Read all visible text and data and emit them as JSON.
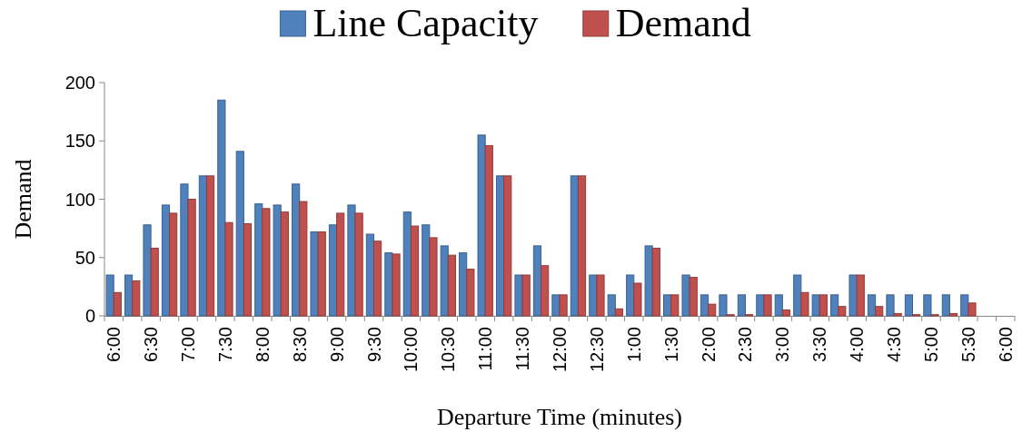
{
  "chart_data": {
    "type": "bar",
    "xlabel": "Departure Time (minutes)",
    "ylabel": "Demand",
    "categories": [
      "6:00",
      null,
      "6:30",
      null,
      "7:00",
      null,
      "7:30",
      null,
      "8:00",
      null,
      "8:30",
      null,
      "9:00",
      null,
      "9:30",
      null,
      "10:00",
      null,
      "10:30",
      null,
      "11:00",
      null,
      "11:30",
      null,
      "12:00",
      null,
      "12:30",
      null,
      "1:00",
      null,
      "1:30",
      null,
      "2:00",
      null,
      "2:30",
      null,
      "3:00",
      null,
      "3:30",
      null,
      "4:00",
      null,
      "4:30",
      null,
      "5:00",
      null,
      "5:30",
      null,
      "6:00"
    ],
    "series": [
      {
        "name": "Line Capacity",
        "color": "#4f81bd",
        "values": [
          35,
          35,
          78,
          95,
          113,
          120,
          185,
          141,
          96,
          95,
          113,
          72,
          78,
          95,
          70,
          54,
          89,
          78,
          60,
          54,
          155,
          120,
          35,
          60,
          18,
          120,
          35,
          18,
          35,
          60,
          18,
          35,
          18,
          18,
          18,
          18,
          18,
          35,
          18,
          18,
          35,
          18,
          18,
          18,
          18,
          18,
          18,
          null,
          null
        ]
      },
      {
        "name": "Demand",
        "color": "#c0504d",
        "values": [
          20,
          30,
          58,
          88,
          100,
          120,
          80,
          79,
          92,
          89,
          98,
          72,
          88,
          88,
          64,
          53,
          77,
          67,
          52,
          40,
          146,
          120,
          35,
          43,
          18,
          120,
          35,
          6,
          28,
          58,
          18,
          33,
          10,
          1,
          1,
          18,
          5,
          20,
          18,
          8,
          35,
          8,
          2,
          1,
          1,
          2,
          11,
          null,
          null
        ]
      }
    ],
    "ylim": [
      0,
      200
    ],
    "yticks": [
      0,
      50,
      100,
      150,
      200
    ],
    "grid": false,
    "legend": "top"
  }
}
